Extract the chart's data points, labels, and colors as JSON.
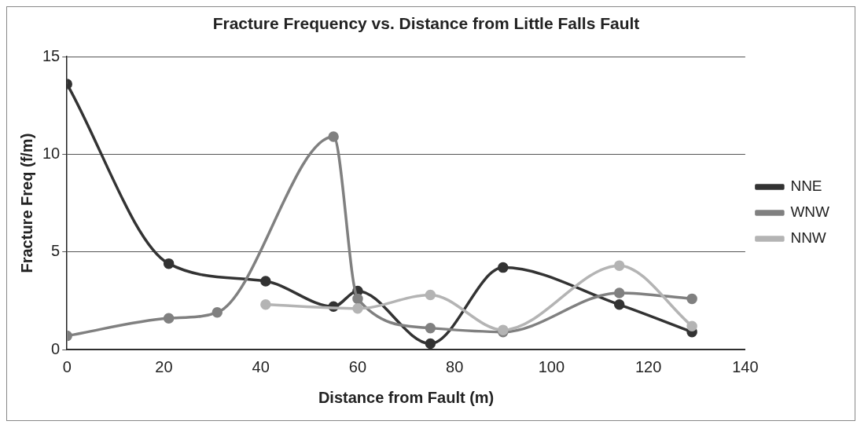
{
  "chart_data": {
    "type": "line",
    "title": "Fracture Frequency vs. Distance from Little Falls Fault",
    "xlabel": "Distance from Fault (m)",
    "ylabel": "Fracture Freq (f/m)",
    "xlim": [
      0,
      140
    ],
    "xticks": [
      0,
      20,
      40,
      60,
      80,
      100,
      120,
      140
    ],
    "ylim": [
      0,
      15
    ],
    "yticks": [
      0,
      5,
      10,
      15
    ],
    "grid": "y",
    "legend": "right",
    "marker": "circle",
    "series": [
      {
        "name": "NNE",
        "color": "#333333",
        "x": [
          0,
          21,
          41,
          55,
          60,
          75,
          90,
          114,
          129
        ],
        "values": [
          13.6,
          4.4,
          3.5,
          2.2,
          3.0,
          0.3,
          4.2,
          2.3,
          0.9
        ]
      },
      {
        "name": "WNW",
        "color": "#808080",
        "x": [
          0,
          21,
          31,
          55,
          60,
          75,
          90,
          114,
          129
        ],
        "values": [
          0.7,
          1.6,
          1.9,
          10.9,
          2.6,
          1.1,
          0.9,
          2.9,
          2.6
        ]
      },
      {
        "name": "NNW",
        "color": "#b4b4b4",
        "x": [
          41,
          60,
          75,
          90,
          114,
          129
        ],
        "values": [
          2.3,
          2.1,
          2.8,
          1.0,
          4.3,
          1.2
        ]
      }
    ]
  }
}
